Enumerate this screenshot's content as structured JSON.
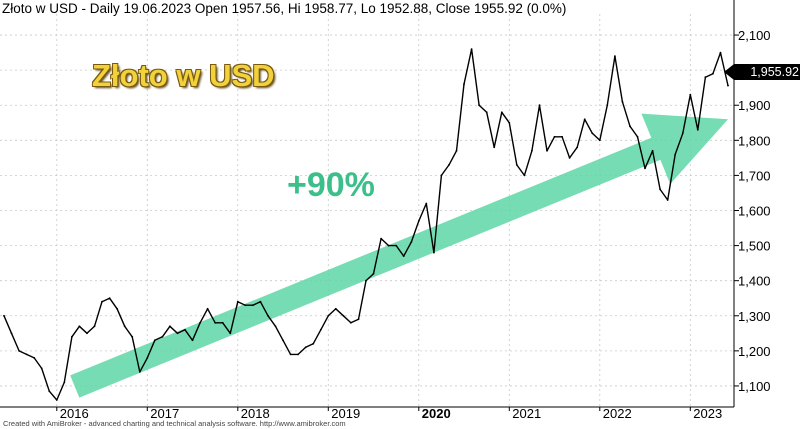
{
  "header": {
    "title": "Złoto w USD - Daily 19.06.2023 Open 1957.56, Hi 1958.77, Lo 1952.88, Close 1955.92 (0.0%)"
  },
  "annotations": {
    "big_title": "Złoto w USD",
    "change": "+90%",
    "last_price": "1,955.92"
  },
  "footer": "Created with AmiBroker - advanced charting and technical analysis software. http://www.amibroker.com",
  "colors": {
    "price_line": "#000000",
    "arrow": "#5ed6a6",
    "change_text": "#3cbf8a",
    "title_text": "#f2d23a",
    "grid": "#c8c8c8"
  },
  "chart_data": {
    "type": "line",
    "series": [
      {
        "values": [
          {
            "x": "2015-06",
            "y": 1300
          },
          {
            "x": "2015-07",
            "y": 1250
          },
          {
            "x": "2015-08",
            "y": 1200
          },
          {
            "x": "2015-09",
            "y": 1190
          },
          {
            "x": "2015-10",
            "y": 1180
          },
          {
            "x": "2015-11",
            "y": 1150
          },
          {
            "x": "2015-12",
            "y": 1085
          },
          {
            "x": "2016-01",
            "y": 1060
          },
          {
            "x": "2016-02",
            "y": 1110
          },
          {
            "x": "2016-03",
            "y": 1240
          },
          {
            "x": "2016-04",
            "y": 1270
          },
          {
            "x": "2016-05",
            "y": 1250
          },
          {
            "x": "2016-06",
            "y": 1270
          },
          {
            "x": "2016-07",
            "y": 1340
          },
          {
            "x": "2016-08",
            "y": 1350
          },
          {
            "x": "2016-09",
            "y": 1320
          },
          {
            "x": "2016-10",
            "y": 1270
          },
          {
            "x": "2016-11",
            "y": 1240
          },
          {
            "x": "2016-12",
            "y": 1140
          },
          {
            "x": "2017-01",
            "y": 1180
          },
          {
            "x": "2017-02",
            "y": 1230
          },
          {
            "x": "2017-03",
            "y": 1240
          },
          {
            "x": "2017-04",
            "y": 1270
          },
          {
            "x": "2017-05",
            "y": 1250
          },
          {
            "x": "2017-06",
            "y": 1260
          },
          {
            "x": "2017-07",
            "y": 1230
          },
          {
            "x": "2017-08",
            "y": 1280
          },
          {
            "x": "2017-09",
            "y": 1320
          },
          {
            "x": "2017-10",
            "y": 1280
          },
          {
            "x": "2017-11",
            "y": 1280
          },
          {
            "x": "2017-12",
            "y": 1250
          },
          {
            "x": "2018-01",
            "y": 1340
          },
          {
            "x": "2018-02",
            "y": 1330
          },
          {
            "x": "2018-03",
            "y": 1330
          },
          {
            "x": "2018-04",
            "y": 1340
          },
          {
            "x": "2018-05",
            "y": 1300
          },
          {
            "x": "2018-06",
            "y": 1270
          },
          {
            "x": "2018-07",
            "y": 1230
          },
          {
            "x": "2018-08",
            "y": 1190
          },
          {
            "x": "2018-09",
            "y": 1190
          },
          {
            "x": "2018-10",
            "y": 1210
          },
          {
            "x": "2018-11",
            "y": 1220
          },
          {
            "x": "2018-12",
            "y": 1260
          },
          {
            "x": "2019-01",
            "y": 1300
          },
          {
            "x": "2019-02",
            "y": 1320
          },
          {
            "x": "2019-03",
            "y": 1300
          },
          {
            "x": "2019-04",
            "y": 1280
          },
          {
            "x": "2019-05",
            "y": 1290
          },
          {
            "x": "2019-06",
            "y": 1400
          },
          {
            "x": "2019-07",
            "y": 1420
          },
          {
            "x": "2019-08",
            "y": 1520
          },
          {
            "x": "2019-09",
            "y": 1500
          },
          {
            "x": "2019-10",
            "y": 1500
          },
          {
            "x": "2019-11",
            "y": 1470
          },
          {
            "x": "2019-12",
            "y": 1510
          },
          {
            "x": "2020-01",
            "y": 1570
          },
          {
            "x": "2020-02",
            "y": 1620
          },
          {
            "x": "2020-03",
            "y": 1480
          },
          {
            "x": "2020-04",
            "y": 1700
          },
          {
            "x": "2020-05",
            "y": 1730
          },
          {
            "x": "2020-06",
            "y": 1770
          },
          {
            "x": "2020-07",
            "y": 1960
          },
          {
            "x": "2020-08",
            "y": 2060
          },
          {
            "x": "2020-09",
            "y": 1900
          },
          {
            "x": "2020-10",
            "y": 1880
          },
          {
            "x": "2020-11",
            "y": 1780
          },
          {
            "x": "2020-12",
            "y": 1880
          },
          {
            "x": "2021-01",
            "y": 1850
          },
          {
            "x": "2021-02",
            "y": 1730
          },
          {
            "x": "2021-03",
            "y": 1700
          },
          {
            "x": "2021-04",
            "y": 1770
          },
          {
            "x": "2021-05",
            "y": 1900
          },
          {
            "x": "2021-06",
            "y": 1770
          },
          {
            "x": "2021-07",
            "y": 1810
          },
          {
            "x": "2021-08",
            "y": 1810
          },
          {
            "x": "2021-09",
            "y": 1750
          },
          {
            "x": "2021-10",
            "y": 1780
          },
          {
            "x": "2021-11",
            "y": 1860
          },
          {
            "x": "2021-12",
            "y": 1820
          },
          {
            "x": "2022-01",
            "y": 1800
          },
          {
            "x": "2022-02",
            "y": 1900
          },
          {
            "x": "2022-03",
            "y": 2040
          },
          {
            "x": "2022-04",
            "y": 1910
          },
          {
            "x": "2022-05",
            "y": 1840
          },
          {
            "x": "2022-06",
            "y": 1810
          },
          {
            "x": "2022-07",
            "y": 1720
          },
          {
            "x": "2022-08",
            "y": 1770
          },
          {
            "x": "2022-09",
            "y": 1660
          },
          {
            "x": "2022-10",
            "y": 1630
          },
          {
            "x": "2022-11",
            "y": 1760
          },
          {
            "x": "2022-12",
            "y": 1820
          },
          {
            "x": "2023-01",
            "y": 1930
          },
          {
            "x": "2023-02",
            "y": 1830
          },
          {
            "x": "2023-03",
            "y": 1980
          },
          {
            "x": "2023-04",
            "y": 1990
          },
          {
            "x": "2023-05",
            "y": 2050
          },
          {
            "x": "2023-06",
            "y": 1955.92
          }
        ]
      }
    ],
    "x_ticks": [
      "2016",
      "2017",
      "2018",
      "2019",
      "2020",
      "2021",
      "2022",
      "2023"
    ],
    "y_ticks": [
      "1,100",
      "1,200",
      "1,300",
      "1,400",
      "1,500",
      "1,600",
      "1,700",
      "1,800",
      "1,900",
      "2,000",
      "2,100"
    ],
    "y_tick_values": [
      1100,
      1200,
      1300,
      1400,
      1500,
      1600,
      1700,
      1800,
      1900,
      2000,
      2100
    ],
    "xlim": [
      "2015-06",
      "2023-06"
    ],
    "ylim": [
      1040,
      2160
    ],
    "arrow": {
      "start": {
        "x": "2016-01",
        "y": 1070
      },
      "end": {
        "x": "2023-06",
        "y": 1860
      }
    },
    "grid": true
  }
}
